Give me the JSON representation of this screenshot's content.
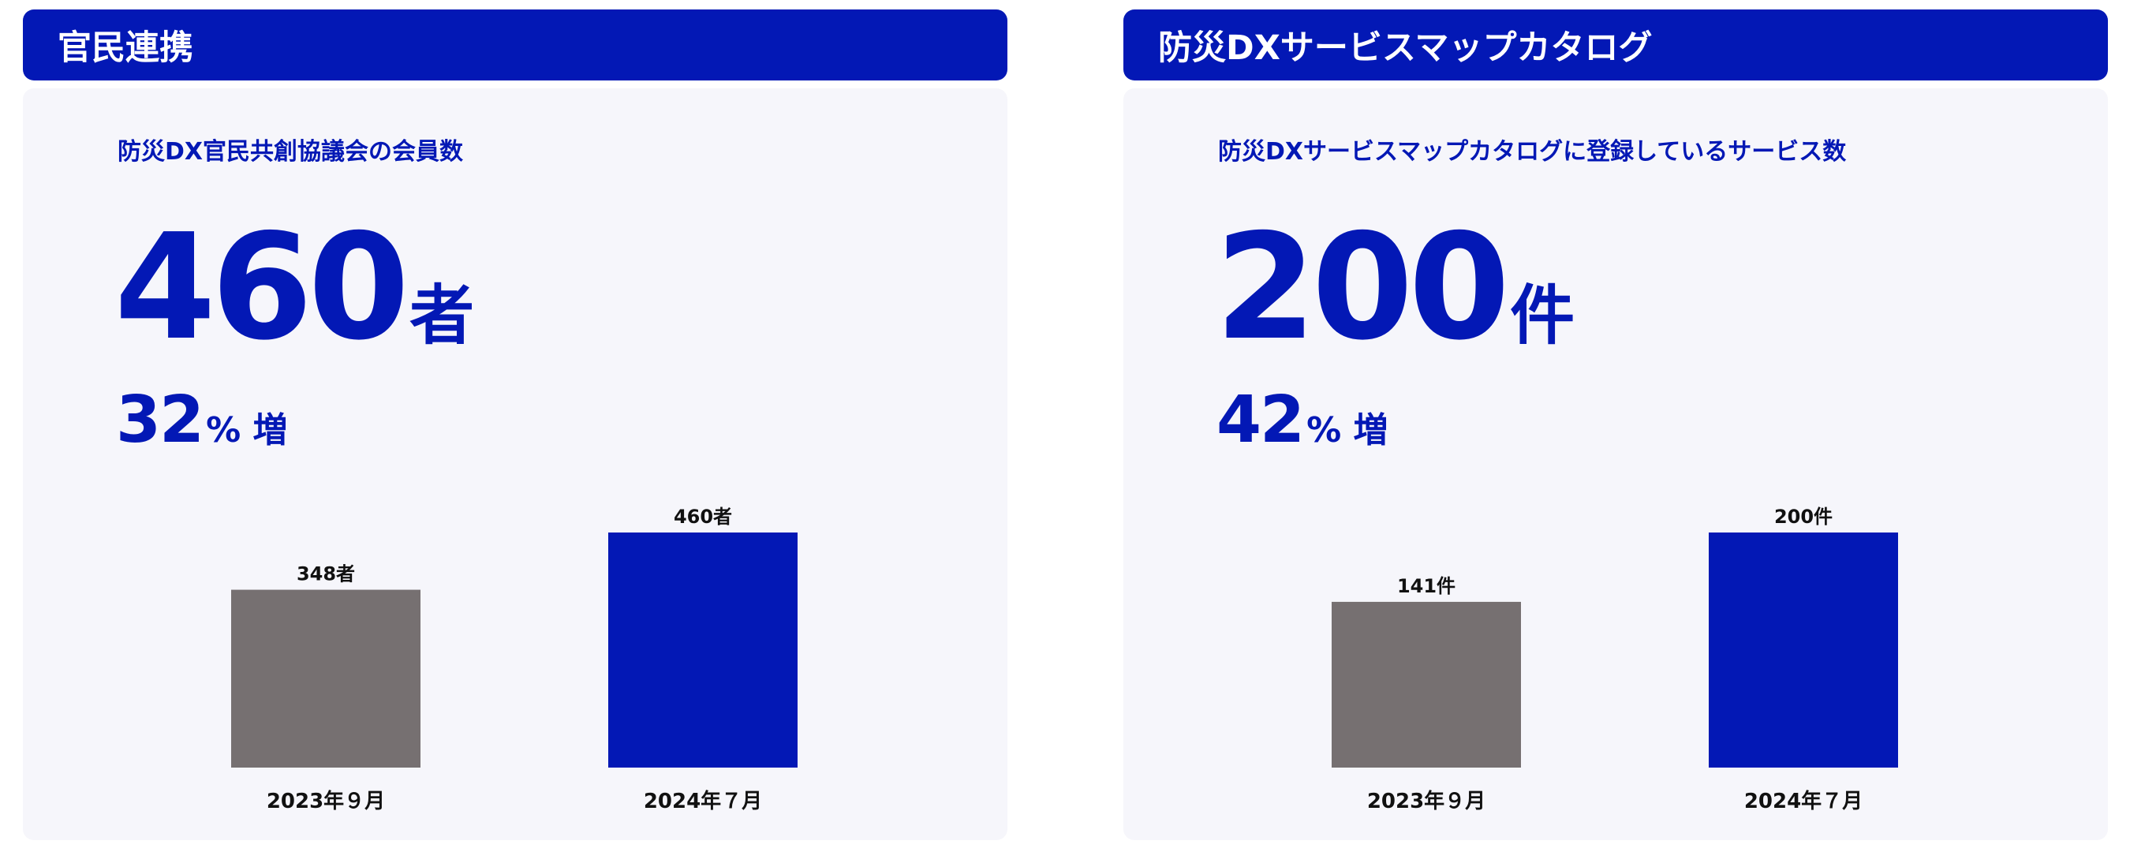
{
  "colors": {
    "brand": "#0318b5",
    "gray": "#767071",
    "card_bg": "#f6f6fb",
    "label": "#111111"
  },
  "chart_data": [
    {
      "type": "bar",
      "panel_title": "官民連携",
      "title": "防災DX官民共創協議会の会員数",
      "headline_value": "460",
      "headline_unit": "者",
      "growth_value": "32",
      "growth_unit": "% 増",
      "categories": [
        "2023年９月",
        "2024年７月"
      ],
      "values": [
        348,
        460
      ],
      "value_labels": [
        "348者",
        "460者"
      ],
      "bar_colors": [
        "#767071",
        "#0318b5"
      ],
      "ylim": [
        0,
        460
      ]
    },
    {
      "type": "bar",
      "panel_title": "防災DXサービスマップカタログ",
      "title": "防災DXサービスマップカタログに登録しているサービス数",
      "headline_value": "200",
      "headline_unit": "件",
      "growth_value": "42",
      "growth_unit": "% 増",
      "categories": [
        "2023年９月",
        "2024年７月"
      ],
      "values": [
        141,
        200
      ],
      "value_labels": [
        "141件",
        "200件"
      ],
      "bar_colors": [
        "#767071",
        "#0318b5"
      ],
      "ylim": [
        0,
        200
      ]
    }
  ]
}
